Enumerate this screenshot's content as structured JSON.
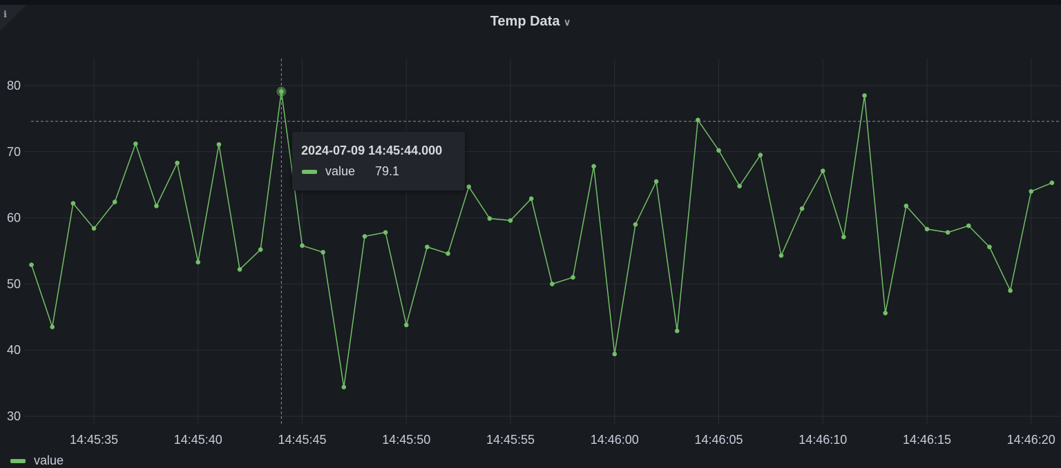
{
  "panel": {
    "title": "Temp Data",
    "info_icon": "info-icon",
    "menu_icon": "chevron-down-icon"
  },
  "chart_data": {
    "type": "line",
    "title": "Temp Data",
    "xlabel": "",
    "ylabel": "",
    "x_ticks": [
      "14:45:35",
      "14:45:40",
      "14:45:45",
      "14:45:50",
      "14:45:55",
      "14:46:00",
      "14:46:05",
      "14:46:10",
      "14:46:15",
      "14:46:20"
    ],
    "y_ticks": [
      30,
      40,
      50,
      60,
      70,
      80
    ],
    "ylim": [
      29,
      84
    ],
    "grid": true,
    "legend_placement": "bottom-left",
    "series": [
      {
        "name": "value",
        "color": "#73bf69",
        "x": [
          "14:45:32",
          "14:45:33",
          "14:45:34",
          "14:45:35",
          "14:45:36",
          "14:45:37",
          "14:45:38",
          "14:45:39",
          "14:45:40",
          "14:45:41",
          "14:45:42",
          "14:45:43",
          "14:45:44",
          "14:45:45",
          "14:45:46",
          "14:45:47",
          "14:45:48",
          "14:45:49",
          "14:45:50",
          "14:45:51",
          "14:45:52",
          "14:45:53",
          "14:45:54",
          "14:45:55",
          "14:45:56",
          "14:45:57",
          "14:45:58",
          "14:45:59",
          "14:46:00",
          "14:46:01",
          "14:46:02",
          "14:46:03",
          "14:46:04",
          "14:46:05",
          "14:46:06",
          "14:46:07",
          "14:46:08",
          "14:46:09",
          "14:46:10",
          "14:46:11",
          "14:46:12",
          "14:46:13",
          "14:46:14",
          "14:46:15",
          "14:46:16",
          "14:46:17",
          "14:46:18",
          "14:46:19",
          "14:46:20",
          "14:46:21"
        ],
        "values": [
          52.9,
          43.5,
          62.2,
          58.4,
          62.4,
          71.2,
          61.8,
          68.3,
          53.3,
          71.1,
          52.2,
          55.2,
          79.1,
          55.8,
          54.8,
          34.4,
          57.2,
          57.8,
          43.8,
          55.6,
          54.6,
          64.7,
          59.9,
          59.6,
          62.9,
          50.0,
          51.0,
          67.8,
          39.4,
          59.0,
          65.5,
          42.9,
          74.8,
          70.2,
          64.8,
          69.5,
          54.3,
          61.4,
          67.1,
          57.1,
          78.5,
          45.6,
          61.8,
          58.3,
          57.8,
          58.8,
          55.6,
          49.0,
          64.0,
          65.3
        ]
      }
    ],
    "cursor": {
      "time": "14:45:44",
      "value": 74.6
    }
  },
  "tooltip": {
    "time": "2024-07-09 14:45:44.000",
    "series": "value",
    "value": "79.1"
  },
  "legend": {
    "items": [
      {
        "label": "value",
        "color": "#73bf69"
      }
    ]
  }
}
